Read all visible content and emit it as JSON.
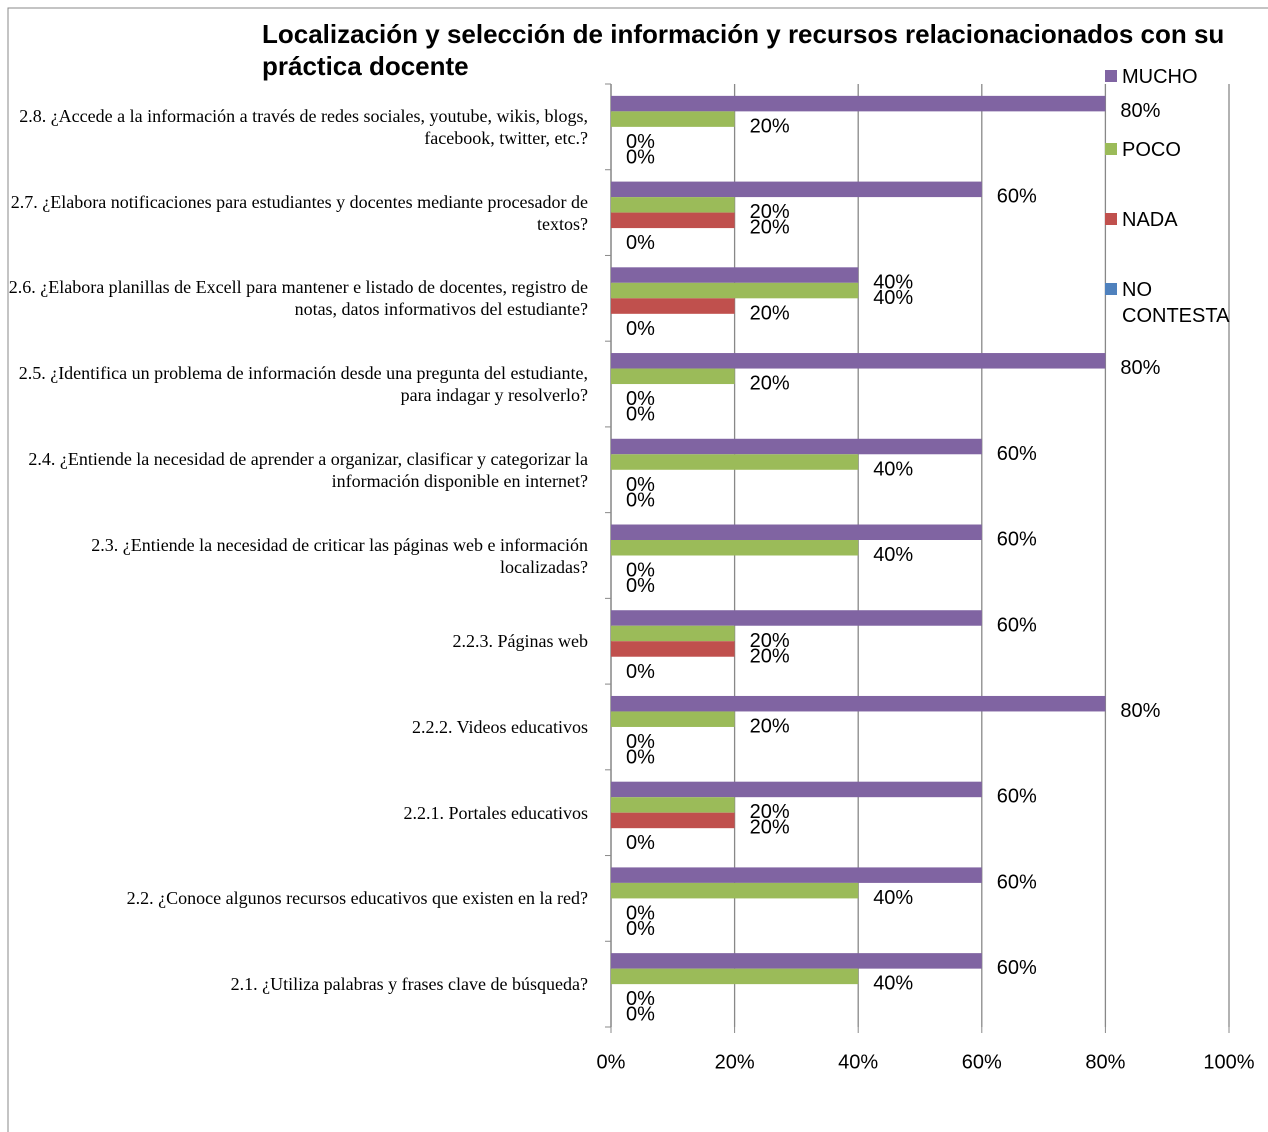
{
  "chart_data": {
    "type": "bar",
    "orientation": "horizontal",
    "title": "Localización y selección de información y recursos relacionacionados con su práctica docente",
    "categories": [
      "2.8. ¿Accede a la información a través de redes sociales, youtube, wikis, blogs, facebook, twitter, etc.?",
      "2.7. ¿Elabora notificaciones para estudiantes y docentes mediante procesador de textos?",
      "2.6. ¿Elabora planillas de Excell para mantener e listado de docentes, registro de notas, datos informativos del estudiante?",
      "2.5. ¿Identifica un problema de información desde una pregunta del estudiante, para indagar y resolverlo?",
      "2.4. ¿Entiende la necesidad de aprender a organizar, clasificar y categorizar la información disponible en internet?",
      "2.3. ¿Entiende la necesidad de criticar las páginas web e información localizadas?",
      "2.2.3. Páginas web",
      "2.2.2. Videos educativos",
      "2.2.1. Portales educativos",
      "2.2. ¿Conoce algunos recursos educativos que existen en la red?",
      "2.1. ¿Utiliza palabras y frases clave de búsqueda?"
    ],
    "series": [
      {
        "name": "MUCHO",
        "color": "#8064a2",
        "values": [
          80,
          60,
          40,
          80,
          60,
          60,
          60,
          80,
          60,
          60,
          60
        ],
        "value_labels": [
          "80%",
          "60%",
          "40%",
          "80%",
          "60%",
          "60%",
          "60%",
          "80%",
          "60%",
          "60%",
          "60%"
        ]
      },
      {
        "name": "POCO",
        "color": "#9bbb59",
        "values": [
          20,
          20,
          40,
          20,
          40,
          40,
          20,
          20,
          20,
          40,
          40
        ],
        "value_labels": [
          "20%",
          "20%",
          "40%",
          "20%",
          "40%",
          "40%",
          "20%",
          "20%",
          "20%",
          "40%",
          "40%"
        ]
      },
      {
        "name": "NADA",
        "color": "#c0504d",
        "values": [
          0,
          20,
          20,
          0,
          0,
          0,
          20,
          0,
          20,
          0,
          0
        ],
        "value_labels": [
          "0%",
          "20%",
          "20%",
          "0%",
          "0%",
          "0%",
          "20%",
          "0%",
          "20%",
          "0%",
          "0%"
        ]
      },
      {
        "name": "NO CONTESTA",
        "color": "#4f81bd",
        "values": [
          0,
          0,
          0,
          0,
          0,
          0,
          0,
          0,
          0,
          0,
          0
        ],
        "value_labels": [
          "0%",
          "0%",
          "0%",
          "0%",
          "0%",
          "0%",
          "0%",
          "0%",
          "0%",
          "0%",
          "0%"
        ]
      }
    ],
    "xlim": [
      0,
      100
    ],
    "xticks": [
      {
        "value": 0,
        "label": "0%"
      },
      {
        "value": 20,
        "label": "20%"
      },
      {
        "value": 40,
        "label": "40%"
      },
      {
        "value": 60,
        "label": "60%"
      },
      {
        "value": 80,
        "label": "80%"
      },
      {
        "value": 100,
        "label": "100%"
      }
    ],
    "grid": true,
    "legend": "right"
  }
}
